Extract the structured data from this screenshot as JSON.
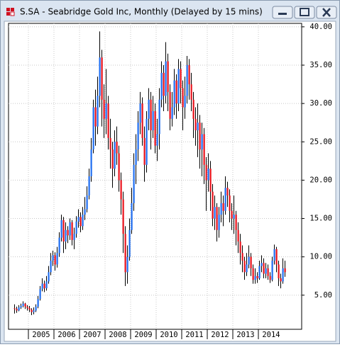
{
  "window": {
    "title": "S.SA - Seabridge Gold Inc, Monthly (Delayed by 15 mins)"
  },
  "chart_data": {
    "type": "candlestick",
    "categories": [
      null,
      null,
      null,
      null,
      null,
      null,
      null,
      null,
      null,
      null,
      null,
      null,
      null,
      "2005",
      null,
      null,
      null,
      null,
      null,
      null,
      null,
      null,
      null,
      null,
      null,
      "2006",
      null,
      null,
      null,
      null,
      null,
      null,
      null,
      null,
      null,
      null,
      null,
      "2007",
      null,
      null,
      null,
      null,
      null,
      null,
      null,
      null,
      null,
      null,
      null,
      "2008",
      null,
      null,
      null,
      null,
      null,
      null,
      null,
      null,
      null,
      null,
      null,
      "2009",
      null,
      null,
      null,
      null,
      null,
      null,
      null,
      null,
      null,
      null,
      null,
      "2010",
      null,
      null,
      null,
      null,
      null,
      null,
      null,
      null,
      null,
      null,
      null,
      "2011",
      null,
      null,
      null,
      null,
      null,
      null,
      null,
      null,
      null,
      null,
      null,
      "2012",
      null,
      null,
      null,
      null,
      null,
      null,
      null,
      null,
      null,
      null,
      null,
      "2013",
      null,
      null,
      null,
      null,
      null,
      null,
      null,
      null,
      null,
      null,
      null,
      "2014",
      null,
      null,
      null,
      null,
      null,
      null
    ],
    "open": [
      3.3,
      3.2,
      3.0,
      3.4,
      3.6,
      3.9,
      3.5,
      3.3,
      3.1,
      2.8,
      3.0,
      3.5,
      4.5,
      5.8,
      6.5,
      5.9,
      6.8,
      8.0,
      9.5,
      10.2,
      9.0,
      10.5,
      12.5,
      14.8,
      12.0,
      13.5,
      12.8,
      14.5,
      12.2,
      13.0,
      14.6,
      15.2,
      14.0,
      15.5,
      16.2,
      18.0,
      20.5,
      24.0,
      29.5,
      27.0,
      31.0,
      36.0,
      30.5,
      28.0,
      30.0,
      25.5,
      24.0,
      21.5,
      25.0,
      23.5,
      20.0,
      17.5,
      13.0,
      8.0,
      10.0,
      13.5,
      17.0,
      22.0,
      24.0,
      27.5,
      30.0,
      25.5,
      22.0,
      28.0,
      30.5,
      26.5,
      29.0,
      24.5,
      26.0,
      30.5,
      34.0,
      31.0,
      35.5,
      31.5,
      28.0,
      29.5,
      33.0,
      30.0,
      34.5,
      32.0,
      29.5,
      31.0,
      35.0,
      32.5,
      30.5,
      28.0,
      26.5,
      27.5,
      24.0,
      26.0,
      22.0,
      20.0,
      21.5,
      18.5,
      15.0,
      16.5,
      13.5,
      15.5,
      17.0,
      16.0,
      19.0,
      18.0,
      16.0,
      15.0,
      15.5,
      13.5,
      12.0,
      10.5,
      9.5,
      8.0,
      9.0,
      10.0,
      8.5,
      7.0,
      7.5,
      7.2,
      8.8,
      9.2,
      7.8,
      8.5,
      7.5,
      7.0,
      9.5,
      11.0,
      9.0,
      7.2,
      6.8,
      8.5
    ],
    "high": [
      3.8,
      3.5,
      3.7,
      3.9,
      4.2,
      4.0,
      3.7,
      3.6,
      3.3,
      3.4,
      3.8,
      4.9,
      6.2,
      7.2,
      6.9,
      7.5,
      8.8,
      10.5,
      10.8,
      10.6,
      11.3,
      13.2,
      15.5,
      15.2,
      14.5,
      14.0,
      15.0,
      14.8,
      13.8,
      15.3,
      16.2,
      15.8,
      16.5,
      17.8,
      19.2,
      21.5,
      25.5,
      30.5,
      31.8,
      33.5,
      39.4,
      37.0,
      32.5,
      34.5,
      31.0,
      28.0,
      25.0,
      26.5,
      27.0,
      24.5,
      21.0,
      18.5,
      14.0,
      11.5,
      15.0,
      19.0,
      23.5,
      26.0,
      29.0,
      31.5,
      30.8,
      27.0,
      29.0,
      32.0,
      31.5,
      31.0,
      30.0,
      28.0,
      32.0,
      35.5,
      35.0,
      38.0,
      36.5,
      32.5,
      31.5,
      34.5,
      33.8,
      35.8,
      35.5,
      33.0,
      33.5,
      36.2,
      35.8,
      34.0,
      31.5,
      29.5,
      30.0,
      28.5,
      27.5,
      26.8,
      23.0,
      23.5,
      22.5,
      19.5,
      18.0,
      17.0,
      16.5,
      18.5,
      18.0,
      20.5,
      19.8,
      18.8,
      17.0,
      18.0,
      16.0,
      14.5,
      13.0,
      11.5,
      10.0,
      10.5,
      11.5,
      10.5,
      9.0,
      8.5,
      8.0,
      9.5,
      10.2,
      9.8,
      9.2,
      9.0,
      8.0,
      10.0,
      11.6,
      11.3,
      9.5,
      7.8,
      9.8,
      9.5
    ],
    "low": [
      2.6,
      2.7,
      2.9,
      3.2,
      3.4,
      3.2,
      3.0,
      2.8,
      2.4,
      2.5,
      2.8,
      3.3,
      4.3,
      5.5,
      5.4,
      5.6,
      6.5,
      7.6,
      8.8,
      8.2,
      8.6,
      10.0,
      12.0,
      10.5,
      11.0,
      11.8,
      12.2,
      11.5,
      11.0,
      12.5,
      13.8,
      13.2,
      13.5,
      14.8,
      15.8,
      17.5,
      19.8,
      23.5,
      24.5,
      26.0,
      29.5,
      27.0,
      25.5,
      26.0,
      24.0,
      21.5,
      19.0,
      20.5,
      22.0,
      18.5,
      15.5,
      10.5,
      6.2,
      6.5,
      9.5,
      13.0,
      16.0,
      19.5,
      22.5,
      26.0,
      24.5,
      19.8,
      21.0,
      26.5,
      24.0,
      25.5,
      23.5,
      22.5,
      24.0,
      29.5,
      29.0,
      30.0,
      29.0,
      26.5,
      27.0,
      28.5,
      28.0,
      29.0,
      30.0,
      26.5,
      28.0,
      30.0,
      30.5,
      29.0,
      25.5,
      24.5,
      23.0,
      21.5,
      20.5,
      19.5,
      16.0,
      18.5,
      16.0,
      14.0,
      13.5,
      12.0,
      12.5,
      14.5,
      14.0,
      15.5,
      16.5,
      14.5,
      13.5,
      13.0,
      11.5,
      10.5,
      9.0,
      8.0,
      7.0,
      7.5,
      8.5,
      7.5,
      6.5,
      6.5,
      6.6,
      7.0,
      8.0,
      7.2,
      7.2,
      7.0,
      6.6,
      6.8,
      9.0,
      8.0,
      6.2,
      5.9,
      6.5,
      7.4
    ],
    "close": [
      3.2,
      3.0,
      3.4,
      3.6,
      3.9,
      3.5,
      3.3,
      3.1,
      2.8,
      3.0,
      3.5,
      4.5,
      5.8,
      6.5,
      5.9,
      6.8,
      8.0,
      9.5,
      10.2,
      9.0,
      10.5,
      12.5,
      14.8,
      12.0,
      13.5,
      12.8,
      14.5,
      12.2,
      13.0,
      14.6,
      15.2,
      14.0,
      15.5,
      16.2,
      18.0,
      20.5,
      24.0,
      29.5,
      27.0,
      31.0,
      36.0,
      30.5,
      28.0,
      30.0,
      25.5,
      24.0,
      21.5,
      25.0,
      23.5,
      20.0,
      17.5,
      13.0,
      8.0,
      10.0,
      13.5,
      17.0,
      22.0,
      24.0,
      27.5,
      30.0,
      25.5,
      22.0,
      28.0,
      30.5,
      26.5,
      29.0,
      24.5,
      26.0,
      30.5,
      34.0,
      31.0,
      35.5,
      31.5,
      28.0,
      29.5,
      33.0,
      30.0,
      34.5,
      32.0,
      29.5,
      31.0,
      35.0,
      32.5,
      30.5,
      28.0,
      26.5,
      27.5,
      24.0,
      26.0,
      22.0,
      20.0,
      21.5,
      18.5,
      15.0,
      16.5,
      13.5,
      15.5,
      17.0,
      16.0,
      19.0,
      18.0,
      16.0,
      15.0,
      15.5,
      13.5,
      12.0,
      10.5,
      9.5,
      8.0,
      9.0,
      10.0,
      8.5,
      7.0,
      7.5,
      7.2,
      8.8,
      9.2,
      7.8,
      8.5,
      7.5,
      7.0,
      9.5,
      11.0,
      9.0,
      7.2,
      6.8,
      8.5,
      8.0
    ],
    "up_color": "#1e6cf0",
    "down_color": "#e8101a",
    "wick_color": "#000000",
    "ylim": [
      0.55,
      40.45
    ],
    "yticks": [
      {
        "value": 5,
        "label": "5.00"
      },
      {
        "value": 10,
        "label": "10.00"
      },
      {
        "value": 15,
        "label": "15.00"
      },
      {
        "value": 20,
        "label": "20.00"
      },
      {
        "value": 25,
        "label": "25.00"
      },
      {
        "value": 30,
        "label": "30.00"
      },
      {
        "value": 35,
        "label": "35.00"
      },
      {
        "value": 40,
        "label": "40.00"
      }
    ],
    "grid": true
  }
}
